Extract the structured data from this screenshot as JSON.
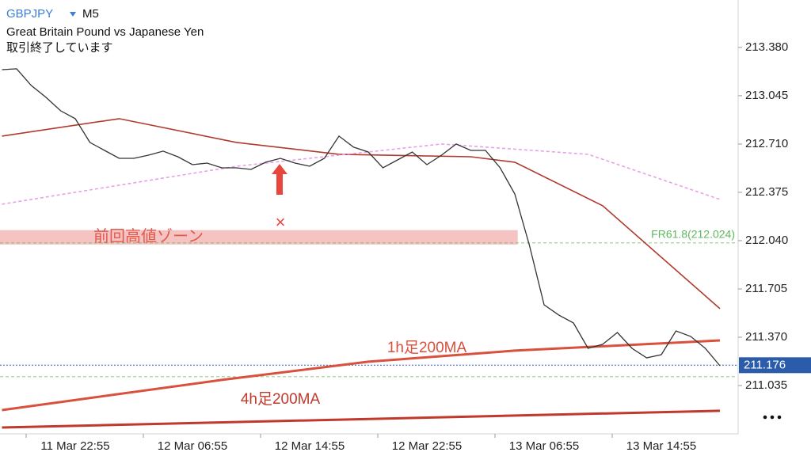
{
  "chart_data": {
    "type": "line",
    "header": {
      "symbol": "GBPJPY",
      "timeframe": "M5",
      "name": "Great Britain Pound vs Japanese Yen",
      "status": "取引終了しています"
    },
    "xlim": [
      -5.135,
      45.135
    ],
    "xticks": [
      {
        "value": 0,
        "label": "11 Mar 22:55"
      },
      {
        "value": 8,
        "label": "12 Mar 06:55"
      },
      {
        "value": 16,
        "label": "12 Mar 14:55"
      },
      {
        "value": 24,
        "label": "12 Mar 22:55"
      },
      {
        "value": 32,
        "label": "13 Mar 06:55"
      },
      {
        "value": 40,
        "label": "13 Mar 14:55"
      }
    ],
    "ylim": [
      210.7,
      213.709
    ],
    "yticks": [
      {
        "value": 213.38,
        "label": "213.380"
      },
      213.045,
      {
        "value": 212.71,
        "label": "212.710"
      },
      212.375,
      {
        "value": 212.04,
        "label": "212.040"
      },
      211.705,
      {
        "value": 211.37,
        "label": "211.370"
      },
      211.035
    ],
    "price": {
      "color": "#333333",
      "x": [
        -5,
        -4,
        -3,
        -2,
        -1,
        0,
        1,
        2,
        3,
        4,
        5,
        6,
        7,
        8,
        9,
        10,
        11,
        12,
        13,
        14,
        15,
        16,
        17,
        18,
        19,
        20,
        21,
        22,
        23,
        24,
        25,
        26,
        27,
        28,
        29,
        30,
        31,
        32,
        33,
        34,
        35,
        36,
        37,
        38,
        39,
        40,
        41,
        42,
        43,
        44
      ],
      "values": [
        213.226,
        213.232,
        213.116,
        213.034,
        212.941,
        212.886,
        212.721,
        212.666,
        212.611,
        212.611,
        212.633,
        212.661,
        212.622,
        212.567,
        212.578,
        212.545,
        212.545,
        212.534,
        212.584,
        212.611,
        212.578,
        212.556,
        212.611,
        212.765,
        212.688,
        212.655,
        212.545,
        212.6,
        212.655,
        212.567,
        212.633,
        212.71,
        212.666,
        212.666,
        212.545,
        212.364,
        212.007,
        211.595,
        211.524,
        211.469,
        211.293,
        211.321,
        211.403,
        211.293,
        211.227,
        211.249,
        211.414,
        211.376,
        211.293,
        211.172
      ]
    },
    "moving_averages": [
      {
        "label": "1h足200MA",
        "color": "#d9503c",
        "x": [
          -5,
          10,
          20,
          30,
          44
        ],
        "values": [
          210.865,
          211.074,
          211.2,
          211.277,
          211.348
        ]
      },
      {
        "label": "4h足200MA",
        "color": "#c0392b",
        "x": [
          -5,
          44
        ],
        "values": [
          210.744,
          210.86
        ]
      },
      {
        "color": "#b03a2e",
        "x": [
          -5,
          3,
          11,
          18,
          27,
          30,
          36,
          44
        ],
        "values": [
          212.765,
          212.886,
          212.721,
          212.639,
          212.622,
          212.584,
          212.282,
          211.568
        ]
      },
      {
        "color": "#e8a0e8",
        "dashed": true,
        "x": [
          -5,
          11,
          25,
          35,
          44
        ],
        "values": [
          212.293,
          212.556,
          212.71,
          212.639,
          212.326
        ]
      }
    ],
    "zone": {
      "label": "前回高値ゾーン",
      "top": 212.113,
      "bottom": 212.013,
      "x_end": 30.2,
      "color": "#f5b8b8"
    },
    "fibo": {
      "label": "FR61.8(212.024)",
      "value": 212.024,
      "color": "#5cb85c"
    },
    "support_level": 211.096,
    "current_price": 211.176,
    "marker": "×"
  }
}
